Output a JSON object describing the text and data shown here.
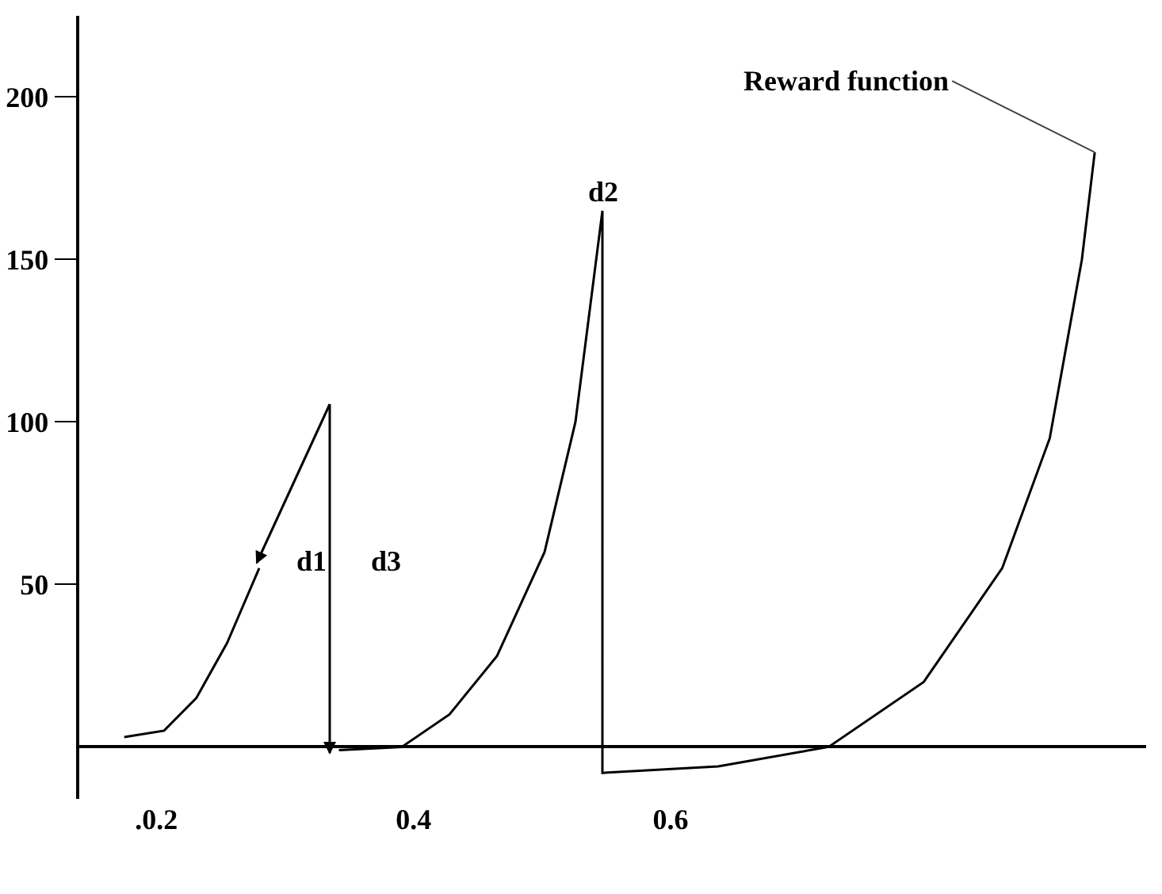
{
  "chart_data": {
    "type": "line",
    "x": [
      0.175,
      0.206,
      0.231,
      0.255,
      0.28,
      0.31,
      0.342,
      0.391,
      0.428,
      0.465,
      0.502,
      0.526,
      0.547,
      0.547,
      0.637,
      0.723,
      0.797,
      0.858,
      0.895,
      0.92,
      0.93
    ],
    "series": [
      {
        "color": "#000000",
        "values": [
          3,
          5,
          15,
          32,
          55,
          null,
          -1,
          0,
          10,
          28,
          60,
          100,
          165,
          -8,
          -6,
          0,
          20,
          55,
          95,
          150,
          183
        ]
      }
    ],
    "xlim": [
      0.14,
      0.97
    ],
    "ylim": [
      -16,
      225
    ],
    "xticks": [
      {
        "value": 0.2,
        "label": ".0.2"
      },
      0.4,
      0.6
    ],
    "yticks": [
      50,
      100,
      150,
      200
    ],
    "grid": false,
    "marker": "none",
    "line_style": "solid",
    "annotations": [
      "d1",
      "d3",
      {
        "text": "d2",
        "x": 0.547,
        "y": 165
      },
      {
        "text": "Reward function",
        "x": 0.93,
        "y": 183
      }
    ]
  }
}
